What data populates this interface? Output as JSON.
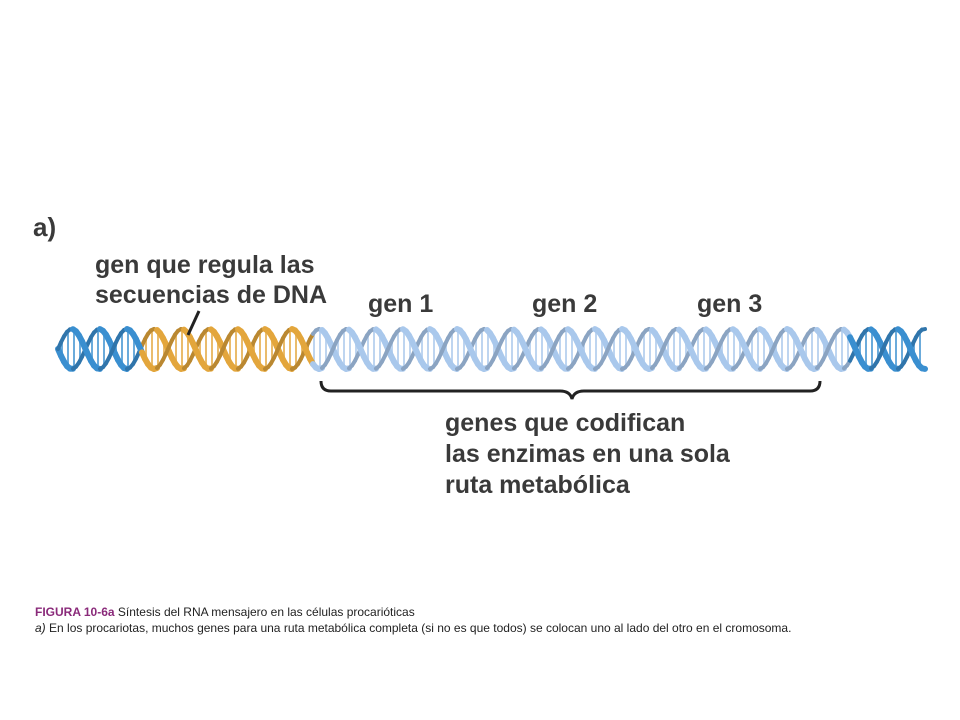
{
  "panel_label": "a)",
  "regulator_label": [
    "gen que regula las",
    "secuencias de DNA"
  ],
  "genes": [
    "gen 1",
    "gen 2",
    "gen 3"
  ],
  "coding_label": [
    "genes que codifican",
    "las enzimas en una sola",
    "ruta metabólica"
  ],
  "caption": {
    "figure_id": "FIGURA 10-6a",
    "title": "Síntesis del RNA mensajero en las células procarióticas",
    "line2_prefix": "a)",
    "line2": "En los procariotas, muchos genes para una ruta metabólica completa (si no es que todos) se colocan uno al lado del otro en el cromosoma."
  },
  "colors": {
    "regulatory_segment": "#e3a63c",
    "flank_segment": "#3a8fd0",
    "gene_segment": "#a9c8ec",
    "caption_figure": "#8a2a7a"
  }
}
